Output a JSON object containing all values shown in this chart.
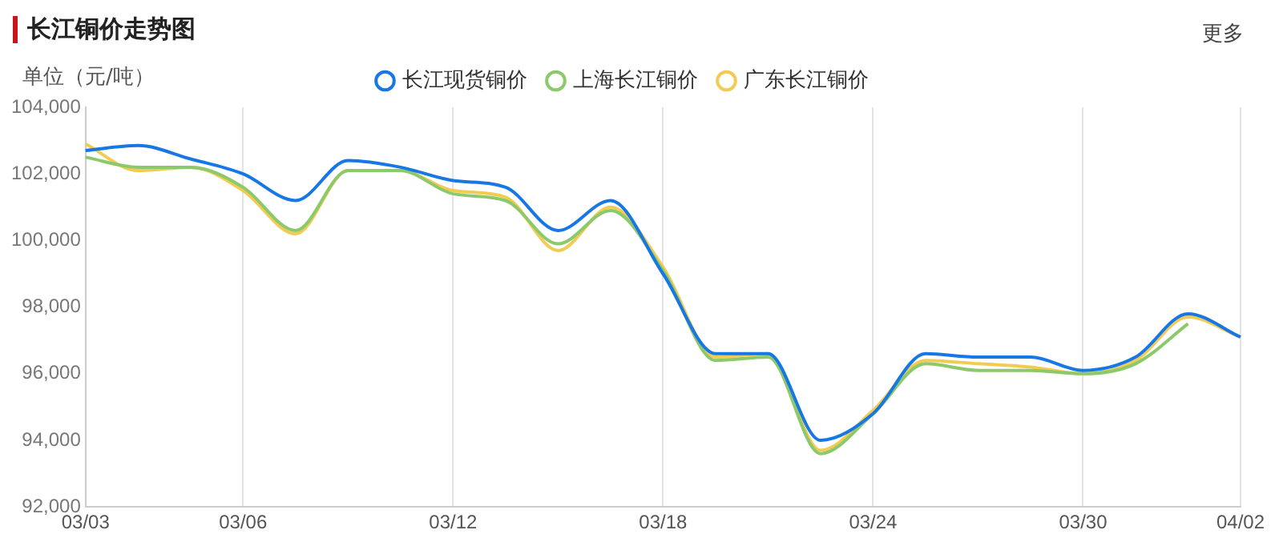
{
  "chart_data": {
    "type": "line",
    "title": "长江铜价走势图",
    "ylabel": "单位（元/吨）",
    "annotations": [
      "更多"
    ],
    "categories": [
      "03/03",
      null,
      null,
      "03/06",
      null,
      null,
      null,
      "03/12",
      null,
      null,
      null,
      "03/18",
      null,
      null,
      null,
      "03/24",
      null,
      null,
      null,
      "03/30",
      null,
      null,
      "04/02"
    ],
    "series": [
      {
        "name": "长江现货铜价",
        "color": "#1677e5",
        "values": [
          102700,
          102850,
          102450,
          102000,
          101200,
          102400,
          102200,
          101800,
          101600,
          100300,
          101200,
          99000,
          96600,
          96600,
          94000,
          94800,
          96600,
          96500,
          96500,
          96100,
          96500,
          97800,
          97100
        ]
      },
      {
        "name": "上海长江铜价",
        "color": "#8cc96b",
        "values": [
          102500,
          102200,
          102200,
          101600,
          100300,
          102100,
          102100,
          101400,
          101200,
          99900,
          100900,
          99100,
          96400,
          96500,
          93600,
          94800,
          96300,
          96100,
          96100,
          96000,
          96300,
          97500,
          null
        ]
      },
      {
        "name": "广东长江铜价",
        "color": "#f2cb55",
        "values": [
          102900,
          102100,
          102200,
          101500,
          100200,
          102100,
          102100,
          101500,
          101300,
          99700,
          101000,
          99200,
          96500,
          96600,
          93700,
          94900,
          96400,
          96300,
          96200,
          96000,
          96400,
          97700,
          97100
        ]
      }
    ],
    "ylim": [
      92000,
      104000
    ],
    "yticks": [
      {
        "value": 92000,
        "label": "92,000"
      },
      {
        "value": 94000,
        "label": "94,000"
      },
      {
        "value": 96000,
        "label": "96,000"
      },
      {
        "value": 98000,
        "label": "98,000"
      },
      {
        "value": 100000,
        "label": "100,000"
      },
      {
        "value": 102000,
        "label": "102,000"
      },
      {
        "value": 104000,
        "label": "104,000"
      }
    ],
    "grid": "x",
    "legend": "top",
    "marker": "none",
    "line_style": "solid"
  }
}
